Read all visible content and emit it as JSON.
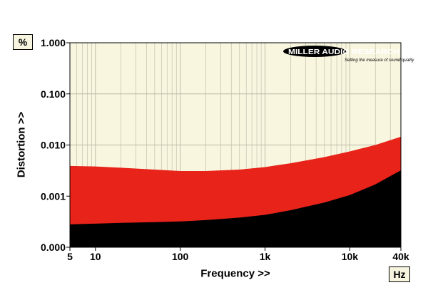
{
  "chart_data": {
    "type": "area",
    "xlabel": "Frequency >>",
    "ylabel": "Distortion >>",
    "y_unit": "%",
    "x_unit": "Hz",
    "x_scale": "log",
    "y_scale": "log",
    "xlim": [
      5,
      40000
    ],
    "ylim": [
      0.0001,
      1.0
    ],
    "x_ticks": [
      {
        "value": 5,
        "label": "5"
      },
      {
        "value": 10,
        "label": "10"
      },
      {
        "value": 100,
        "label": "100"
      },
      {
        "value": 1000,
        "label": "1k"
      },
      {
        "value": 10000,
        "label": "10k"
      },
      {
        "value": 40000,
        "label": "40k"
      }
    ],
    "y_ticks": [
      {
        "value": 0.0001,
        "label": "0.000"
      },
      {
        "value": 0.001,
        "label": "0.001"
      },
      {
        "value": 0.01,
        "label": "0.010"
      },
      {
        "value": 0.1,
        "label": "0.100"
      },
      {
        "value": 1.0,
        "label": "1.000"
      }
    ],
    "grid": true,
    "series": [
      {
        "color": "#e8231a",
        "x": [
          5,
          10,
          20,
          50,
          100,
          200,
          500,
          1000,
          2000,
          5000,
          10000,
          20000,
          40000
        ],
        "y": [
          0.0039,
          0.0038,
          0.0036,
          0.0033,
          0.0031,
          0.0031,
          0.0033,
          0.0037,
          0.0044,
          0.0058,
          0.0075,
          0.01,
          0.0145
        ]
      },
      {
        "color": "#000000",
        "x": [
          5,
          10,
          20,
          50,
          100,
          200,
          500,
          1000,
          2000,
          5000,
          10000,
          20000,
          40000
        ],
        "y": [
          0.00028,
          0.00029,
          0.0003,
          0.00031,
          0.00032,
          0.00034,
          0.00038,
          0.00043,
          0.00053,
          0.00075,
          0.00105,
          0.0017,
          0.0032
        ]
      }
    ]
  },
  "logo": {
    "brand": "MILLER AUDIO RESEARCH",
    "tagline": "Setting the measure of sound quality"
  },
  "colors": {
    "plot_background": "#f9f6e0",
    "grid": "#b9b6a3"
  }
}
